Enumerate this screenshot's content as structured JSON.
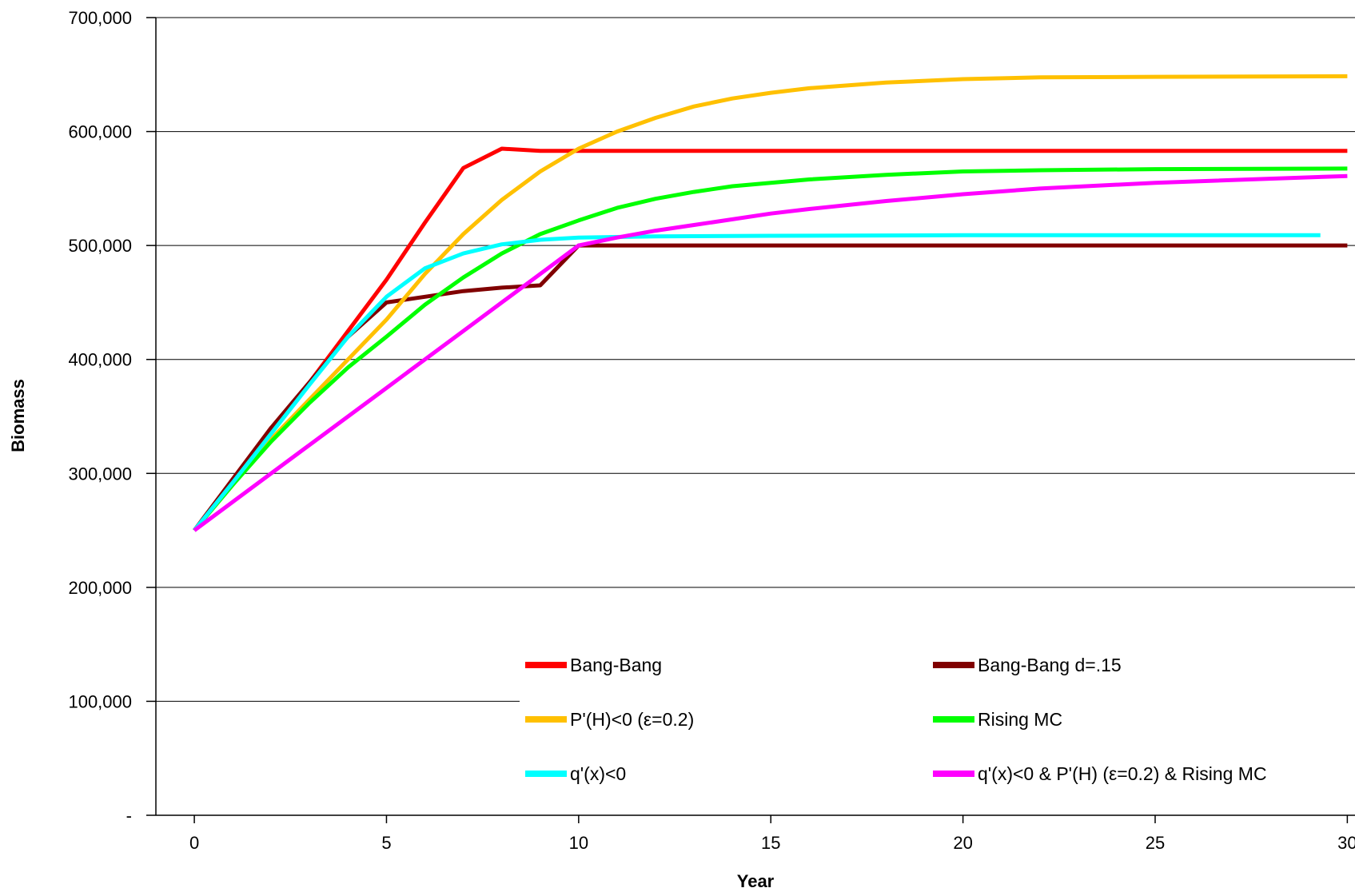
{
  "chart_data": {
    "type": "line",
    "xlabel": "Year",
    "ylabel": "Biomass",
    "xlim": [
      -1,
      30.2
    ],
    "ylim": [
      0,
      700000
    ],
    "x_ticks": [
      {
        "value": 0,
        "label": "0"
      },
      {
        "value": 5,
        "label": "5"
      },
      {
        "value": 10,
        "label": "10"
      },
      {
        "value": 15,
        "label": "15"
      },
      {
        "value": 20,
        "label": "20"
      },
      {
        "value": 25,
        "label": "25"
      },
      {
        "value": 30,
        "label": "30"
      }
    ],
    "y_ticks": [
      {
        "value": 0,
        "label": "-"
      },
      {
        "value": 100000,
        "label": "100,000"
      },
      {
        "value": 200000,
        "label": "200,000"
      },
      {
        "value": 300000,
        "label": "300,000"
      },
      {
        "value": 400000,
        "label": "400,000"
      },
      {
        "value": 500000,
        "label": "500,000"
      },
      {
        "value": 600000,
        "label": "600,000"
      },
      {
        "value": 700000,
        "label": "700,000"
      }
    ],
    "grid": "horizontal",
    "legend_position": "bottom-inside",
    "series": [
      {
        "name": "Bang-Bang",
        "color": "#ff0000",
        "x": [
          0,
          1,
          2,
          3,
          4,
          5,
          6,
          7,
          8,
          9,
          10,
          15,
          20,
          25,
          30
        ],
        "y": [
          250000,
          295000,
          340000,
          380000,
          425000,
          470000,
          520000,
          568000,
          585000,
          583000,
          583000,
          583000,
          583000,
          583000,
          583000
        ]
      },
      {
        "name": "Bang-Bang d=.15",
        "color": "#800000",
        "x": [
          0,
          1,
          2,
          3,
          4,
          5,
          6,
          7,
          8,
          9,
          10,
          15,
          20,
          25,
          30
        ],
        "y": [
          250000,
          295000,
          340000,
          380000,
          420000,
          450000,
          455000,
          460000,
          463000,
          465000,
          500000,
          500000,
          500000,
          500000,
          500000
        ]
      },
      {
        "name": "P'(H)<0 (ε=0.2)",
        "color": "#ffc000",
        "x": [
          0,
          1,
          2,
          3,
          4,
          5,
          6,
          7,
          8,
          9,
          10,
          11,
          12,
          13,
          14,
          15,
          16,
          18,
          20,
          22,
          25,
          30
        ],
        "y": [
          250000,
          290000,
          330000,
          365000,
          400000,
          435000,
          475000,
          510000,
          540000,
          565000,
          585000,
          600000,
          612000,
          622000,
          629000,
          634000,
          638000,
          643000,
          646000,
          647500,
          648000,
          648500
        ]
      },
      {
        "name": "Rising MC",
        "color": "#00ff00",
        "x": [
          0,
          1,
          2,
          3,
          4,
          5,
          6,
          7,
          8,
          9,
          10,
          11,
          12,
          13,
          14,
          15,
          16,
          18,
          20,
          22,
          25,
          30
        ],
        "y": [
          250000,
          290000,
          328000,
          362000,
          393000,
          420000,
          448000,
          472000,
          493000,
          510000,
          522000,
          533000,
          541000,
          547000,
          552000,
          555000,
          558000,
          562000,
          565000,
          566000,
          567000,
          567500
        ]
      },
      {
        "name": "q'(x)<0",
        "color": "#00ffff",
        "x": [
          0,
          1,
          2,
          3,
          4,
          5,
          6,
          7,
          8,
          9,
          10,
          12,
          15,
          20,
          25,
          29.3
        ],
        "y": [
          250000,
          292000,
          335000,
          378000,
          420000,
          455000,
          480000,
          493000,
          501000,
          505000,
          507000,
          508000,
          508500,
          509000,
          509000,
          509000
        ]
      },
      {
        "name": "q'(x)<0 & P'(H) (ε=0.2) & Rising MC",
        "color": "#ff00ff",
        "x": [
          0,
          1,
          2,
          3,
          4,
          5,
          6,
          7,
          8,
          9,
          10,
          11,
          12,
          13,
          14,
          15,
          16,
          18,
          20,
          22,
          25,
          30
        ],
        "y": [
          250000,
          275000,
          300000,
          325000,
          350000,
          375000,
          400000,
          425000,
          450000,
          475000,
          500000,
          507000,
          513000,
          518000,
          523000,
          528000,
          532000,
          539000,
          545000,
          550000,
          555000,
          561000
        ]
      }
    ]
  }
}
